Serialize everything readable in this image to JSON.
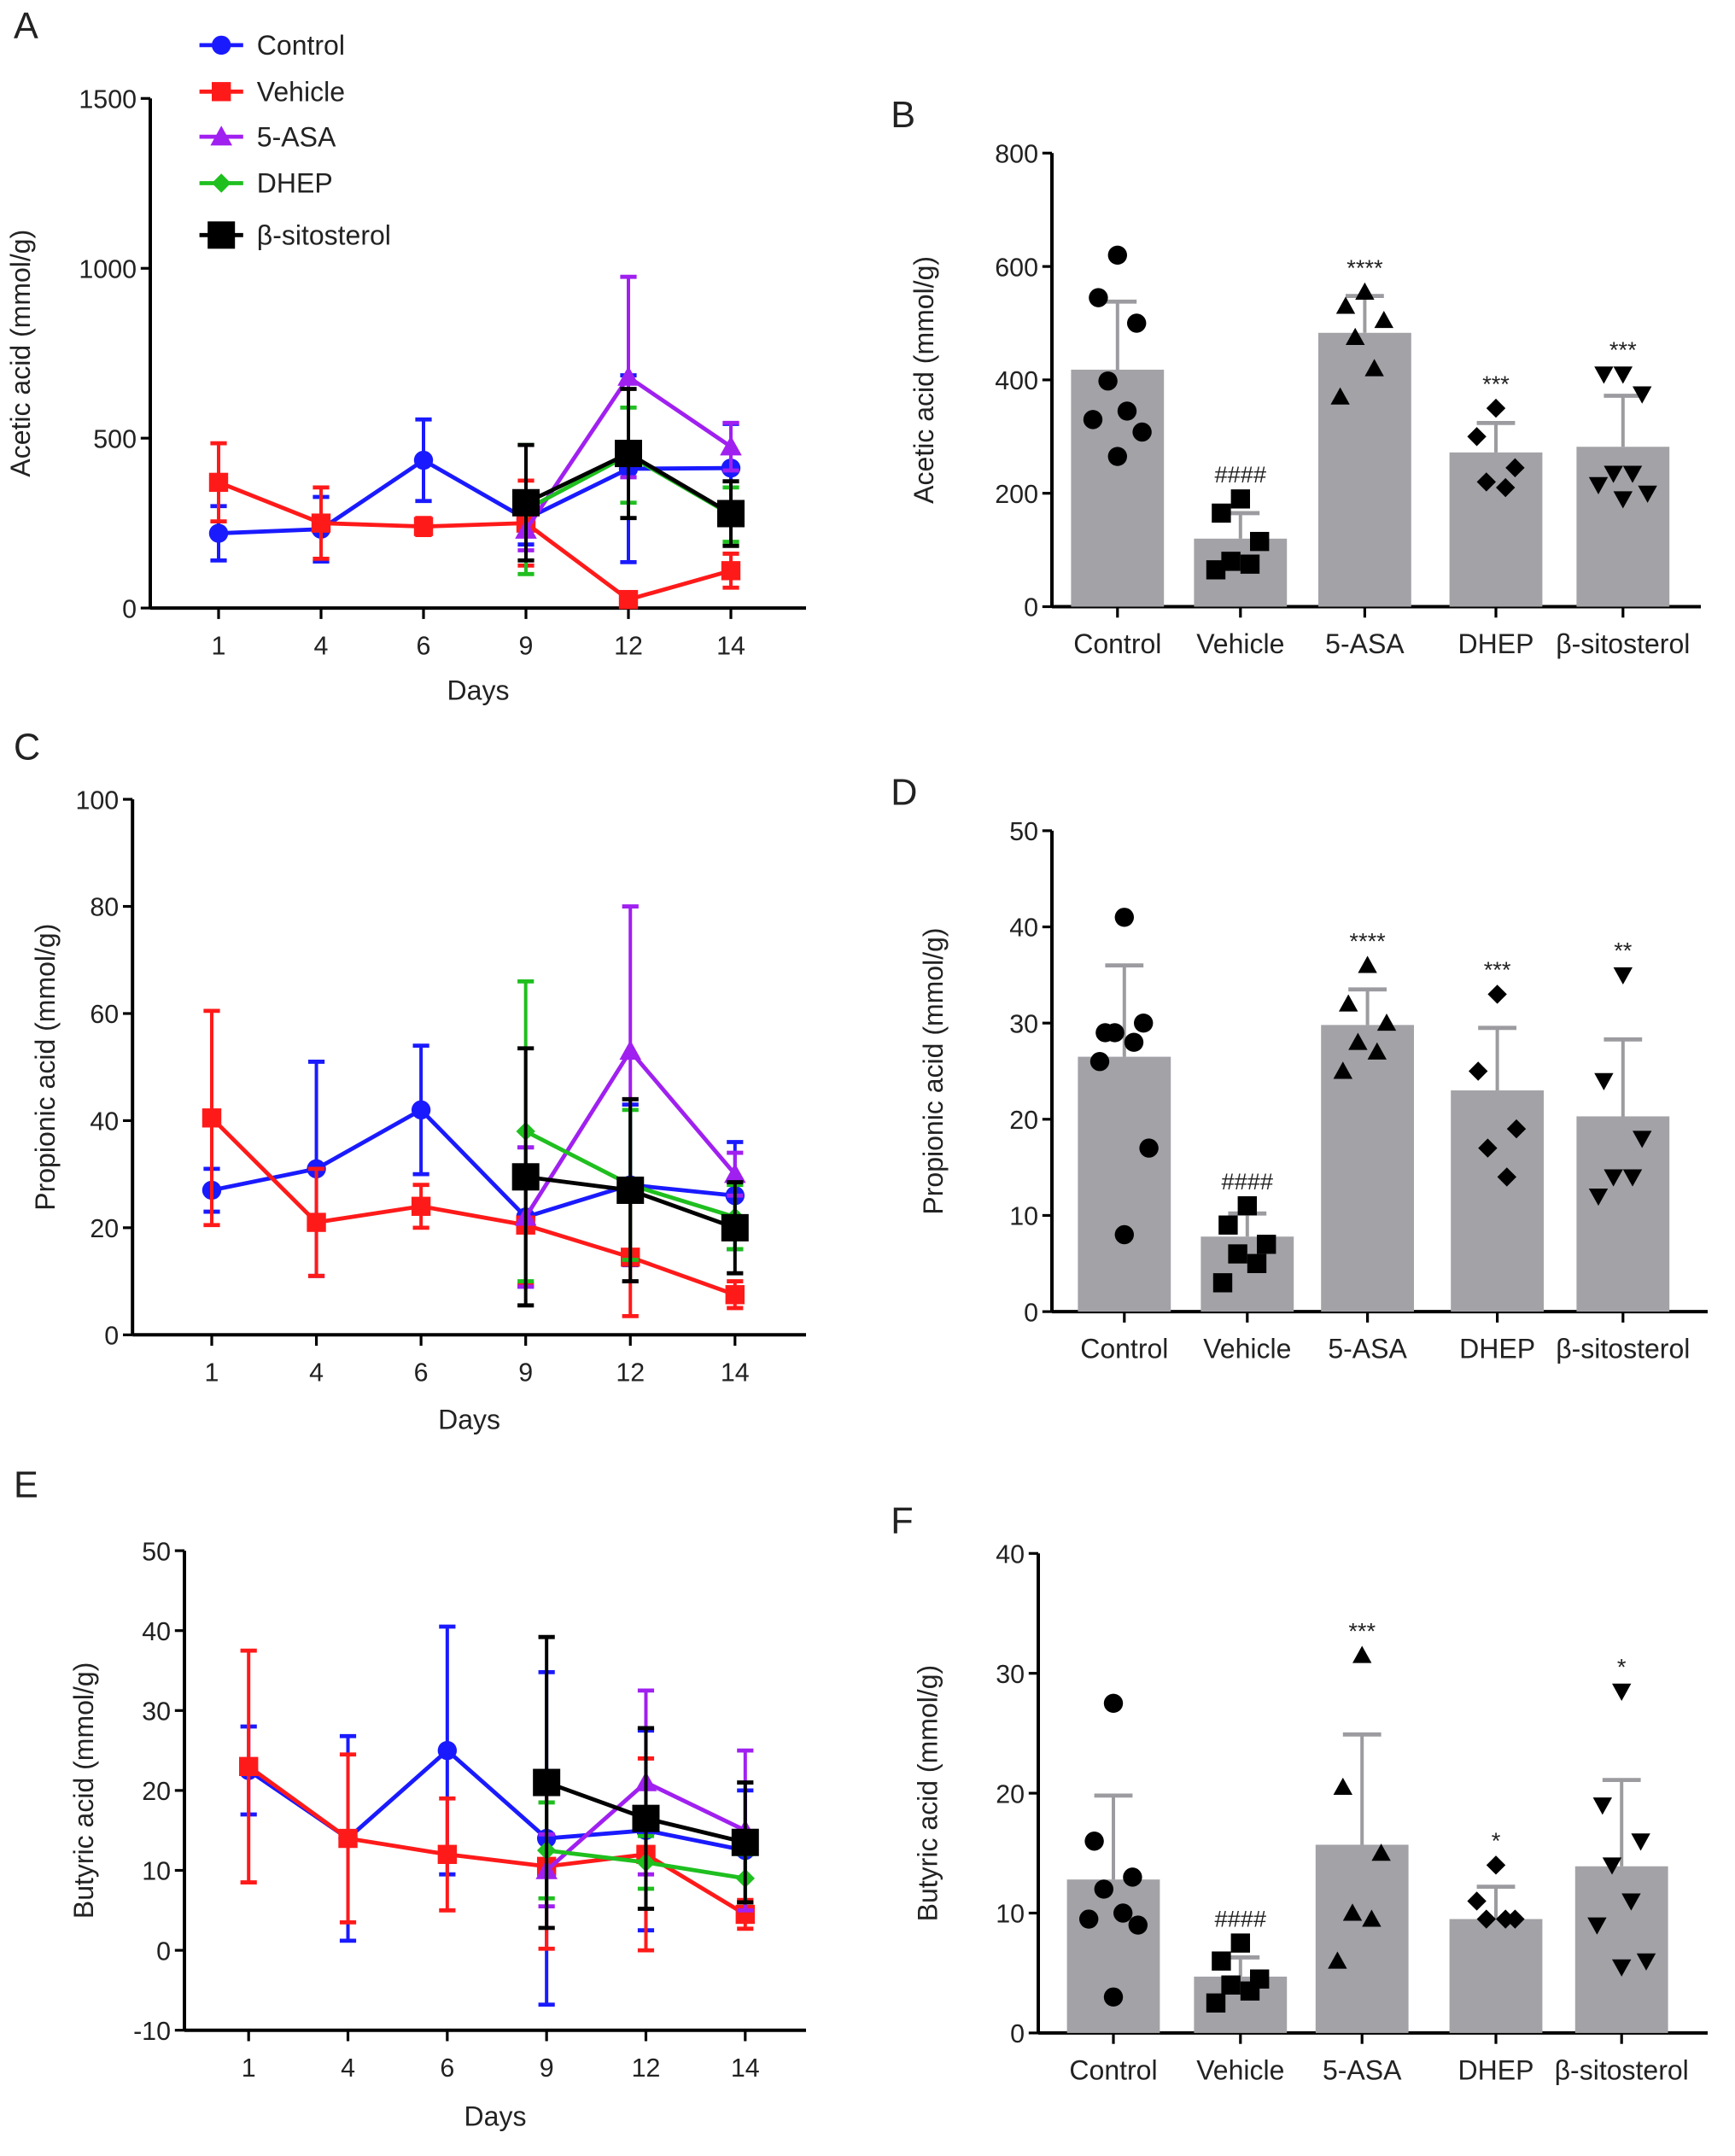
{
  "chart_data": [
    {
      "panel_label": "A",
      "type": "line",
      "xlabel": "Days",
      "ylabel": "Acetic acid (mmol/g)",
      "x": [
        "1",
        "4",
        "6",
        "9",
        "12",
        "14"
      ],
      "ylim": [
        0,
        1500
      ],
      "yticks": [
        0,
        500,
        1000,
        1500
      ],
      "legend": "top-left",
      "series": [
        {
          "name": "Control",
          "color": "#1a1aff",
          "marker": "circle",
          "values": [
            220,
            232,
            435,
            262,
            410,
            412
          ],
          "sd": [
            80,
            95,
            120,
            75,
            275,
            130
          ]
        },
        {
          "name": "Vehicle",
          "color": "#ff1a1a",
          "marker": "square",
          "values": [
            370,
            250,
            240,
            250,
            25,
            110
          ],
          "sd": [
            115,
            105,
            25,
            125,
            20,
            50
          ]
        },
        {
          "name": "5-ASA",
          "color": "#a020f0",
          "marker": "triangle",
          "values": [
            null,
            null,
            null,
            230,
            680,
            475
          ],
          "sd": [
            null,
            null,
            null,
            60,
            295,
            70
          ]
        },
        {
          "name": "DHEP",
          "color": "#1fbf1f",
          "marker": "diamond",
          "values": [
            null,
            null,
            null,
            290,
            450,
            275
          ],
          "sd": [
            null,
            null,
            null,
            190,
            140,
            80
          ]
        },
        {
          "name": "β-sitosterol",
          "color": "#000000",
          "marker": "bigsquare",
          "values": [
            null,
            null,
            null,
            310,
            455,
            278
          ],
          "sd": [
            null,
            null,
            null,
            170,
            190,
            95
          ]
        }
      ]
    },
    {
      "panel_label": "B",
      "type": "bar",
      "xlabel": "",
      "ylabel": "Acetic acid (mmol/g)",
      "categories": [
        "Control",
        "Vehicle",
        "5-ASA",
        "DHEP",
        "β-sitosterol"
      ],
      "ylim": [
        0,
        800
      ],
      "yticks": [
        0,
        200,
        400,
        600,
        800
      ],
      "values": [
        418,
        120,
        483,
        272,
        282
      ],
      "sd": [
        120,
        45,
        65,
        52,
        90
      ],
      "significance": [
        "",
        "####",
        "****",
        "***",
        "***"
      ],
      "points": [
        [
          620,
          545,
          500,
          398,
          345,
          330,
          308,
          265
        ],
        [
          190,
          165,
          115,
          80,
          75,
          65
        ],
        [
          555,
          530,
          505,
          475,
          420,
          370
        ],
        [
          350,
          300,
          245,
          220,
          210
        ],
        [
          410,
          410,
          375,
          235,
          235,
          215,
          200,
          190
        ]
      ]
    },
    {
      "panel_label": "C",
      "type": "line",
      "xlabel": "Days",
      "ylabel": "Propionic acid (mmol/g)",
      "x": [
        "1",
        "4",
        "6",
        "9",
        "12",
        "14"
      ],
      "ylim": [
        0,
        100
      ],
      "yticks": [
        0,
        20,
        40,
        60,
        80,
        100
      ],
      "series": [
        {
          "name": "Control",
          "color": "#1a1aff",
          "marker": "circle",
          "values": [
            27,
            31,
            42,
            22,
            28,
            26
          ],
          "sd": [
            4,
            20,
            12,
            13,
            15,
            10
          ]
        },
        {
          "name": "Vehicle",
          "color": "#ff1a1a",
          "marker": "square",
          "values": [
            40.5,
            21,
            24,
            20.5,
            14.5,
            7.5
          ],
          "sd": [
            20,
            10,
            4,
            11,
            11,
            2.5
          ]
        },
        {
          "name": "5-ASA",
          "color": "#a020f0",
          "marker": "triangle",
          "values": [
            null,
            null,
            null,
            22,
            53,
            30
          ],
          "sd": [
            null,
            null,
            null,
            13,
            27,
            4
          ]
        },
        {
          "name": "DHEP",
          "color": "#1fbf1f",
          "marker": "diamond",
          "values": [
            null,
            null,
            null,
            38,
            28,
            22
          ],
          "sd": [
            null,
            null,
            null,
            28,
            14,
            6
          ]
        },
        {
          "name": "β-sitosterol",
          "color": "#000000",
          "marker": "bigsquare",
          "values": [
            null,
            null,
            null,
            29.5,
            27,
            20
          ],
          "sd": [
            null,
            null,
            null,
            24,
            17,
            8.5
          ]
        }
      ]
    },
    {
      "panel_label": "D",
      "type": "bar",
      "xlabel": "",
      "ylabel": "Propionic acid (mmol/g)",
      "categories": [
        "Control",
        "Vehicle",
        "5-ASA",
        "DHEP",
        "β-sitosterol"
      ],
      "ylim": [
        0,
        50
      ],
      "yticks": [
        0,
        10,
        20,
        30,
        40,
        50
      ],
      "values": [
        26.5,
        7.8,
        29.8,
        23,
        20.3
      ],
      "sd": [
        9.5,
        2.4,
        3.7,
        6.5,
        8
      ],
      "significance": [
        "",
        "####",
        "****",
        "***",
        "**"
      ],
      "points": [
        [
          41,
          29,
          30,
          29,
          28,
          26,
          17,
          8
        ],
        [
          11,
          9,
          7,
          6,
          5,
          3
        ],
        [
          36,
          32,
          30,
          28,
          27,
          25
        ],
        [
          33,
          25,
          19,
          17,
          14
        ],
        [
          35,
          24,
          18,
          14,
          14,
          12
        ]
      ]
    },
    {
      "panel_label": "E",
      "type": "line",
      "xlabel": "Days",
      "ylabel": "Butyric acid (mmol/g)",
      "x": [
        "1",
        "4",
        "6",
        "9",
        "12",
        "14"
      ],
      "ylim": [
        -10,
        50
      ],
      "yticks": [
        -10,
        0,
        10,
        20,
        30,
        40,
        50
      ],
      "series": [
        {
          "name": "Control",
          "color": "#1a1aff",
          "marker": "circle",
          "values": [
            22.5,
            14,
            25,
            14,
            15,
            12.5
          ],
          "sd": [
            5.5,
            12.8,
            15.5,
            20.8,
            12.5,
            7.5
          ]
        },
        {
          "name": "Vehicle",
          "color": "#ff1a1a",
          "marker": "square",
          "values": [
            23,
            14,
            12,
            10.5,
            12,
            4.5
          ],
          "sd": [
            14.5,
            10.5,
            7,
            10.3,
            12,
            1.8
          ]
        },
        {
          "name": "5-ASA",
          "color": "#a020f0",
          "marker": "triangle",
          "values": [
            null,
            null,
            null,
            10,
            21,
            15
          ],
          "sd": [
            null,
            null,
            null,
            4.5,
            11.5,
            10
          ]
        },
        {
          "name": "DHEP",
          "color": "#1fbf1f",
          "marker": "diamond",
          "values": [
            null,
            null,
            null,
            12.5,
            11,
            9
          ],
          "sd": [
            null,
            null,
            null,
            6,
            3.3,
            3
          ]
        },
        {
          "name": "β-sitosterol",
          "color": "#000000",
          "marker": "bigsquare",
          "values": [
            null,
            null,
            null,
            21,
            16.5,
            13.5
          ],
          "sd": [
            null,
            null,
            null,
            18.2,
            11.3,
            7.5
          ]
        }
      ]
    },
    {
      "panel_label": "F",
      "type": "bar",
      "xlabel": "",
      "ylabel": "Butyric acid (mmol/g)",
      "categories": [
        "Control",
        "Vehicle",
        "5-ASA",
        "DHEP",
        "β-sitosterol"
      ],
      "ylim": [
        0,
        40
      ],
      "yticks": [
        0,
        10,
        20,
        30,
        40
      ],
      "values": [
        12.8,
        4.7,
        15.7,
        9.5,
        13.9
      ],
      "sd": [
        7,
        1.6,
        9.2,
        2.7,
        7.2
      ],
      "significance": [
        "",
        "####",
        "***",
        "*",
        "*"
      ],
      "points": [
        [
          27.5,
          16,
          13,
          12,
          10,
          9.5,
          9,
          3
        ],
        [
          7.5,
          6,
          4.5,
          4,
          3.5,
          2.5
        ],
        [
          31.5,
          20.5,
          15,
          10,
          9.5,
          6
        ],
        [
          14,
          11,
          9.5,
          9.5,
          9.5
        ],
        [
          28.5,
          19,
          16,
          14,
          11,
          9,
          6,
          5.5
        ]
      ]
    }
  ]
}
